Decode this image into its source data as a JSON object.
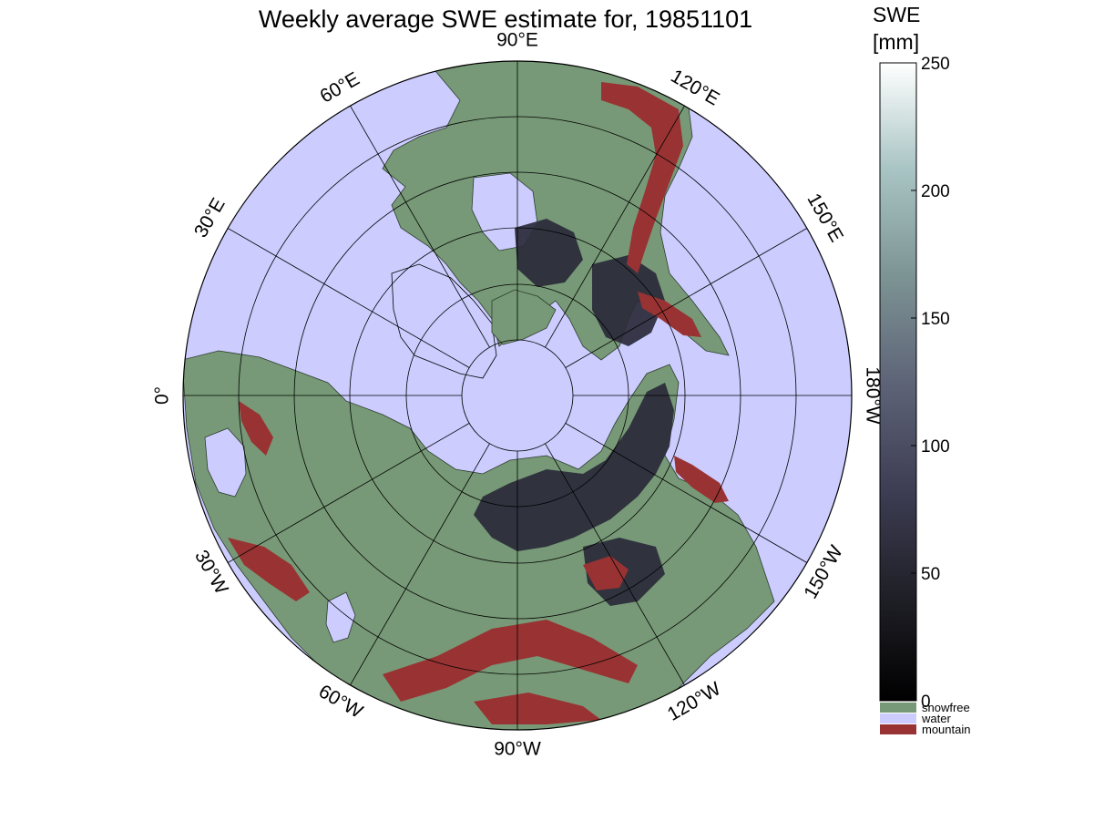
{
  "title": "Weekly average SWE estimate for, 19851101",
  "map": {
    "projection": "north-polar",
    "colors": {
      "water": "#ccccff",
      "snowfree": "#779977",
      "mountain": "#993333",
      "snow_dark": "#2a2a3a",
      "grid": "#000000"
    },
    "longitude_labels": [
      {
        "lon": -90,
        "text": "90°W"
      },
      {
        "lon": -60,
        "text": "60°W"
      },
      {
        "lon": -30,
        "text": "30°W"
      },
      {
        "lon": 0,
        "text": "0°"
      },
      {
        "lon": 30,
        "text": "30°E"
      },
      {
        "lon": 60,
        "text": "60°E"
      },
      {
        "lon": 90,
        "text": "90°E"
      },
      {
        "lon": 120,
        "text": "120°E"
      },
      {
        "lon": 150,
        "text": "150°E"
      },
      {
        "lon": 180,
        "text": "180°W"
      },
      {
        "lon": -150,
        "text": "150°W"
      },
      {
        "lon": -120,
        "text": "120°W"
      }
    ]
  },
  "colorbar": {
    "title_line1": "SWE",
    "title_line2": "[mm]",
    "range": [
      0,
      250
    ],
    "ticks": [
      "0",
      "50",
      "100",
      "150",
      "200",
      "250"
    ],
    "tick_values": [
      0,
      50,
      100,
      150,
      200,
      250
    ],
    "gradient_stops": [
      "#000000",
      "#202028",
      "#3e3e55",
      "#5e6478",
      "#7d9494",
      "#a9c4c4",
      "#ffffff"
    ],
    "categories": [
      {
        "label": "snowfree",
        "color": "#779977"
      },
      {
        "label": "water",
        "color": "#ccccff"
      },
      {
        "label": "mountain",
        "color": "#993333"
      }
    ]
  }
}
